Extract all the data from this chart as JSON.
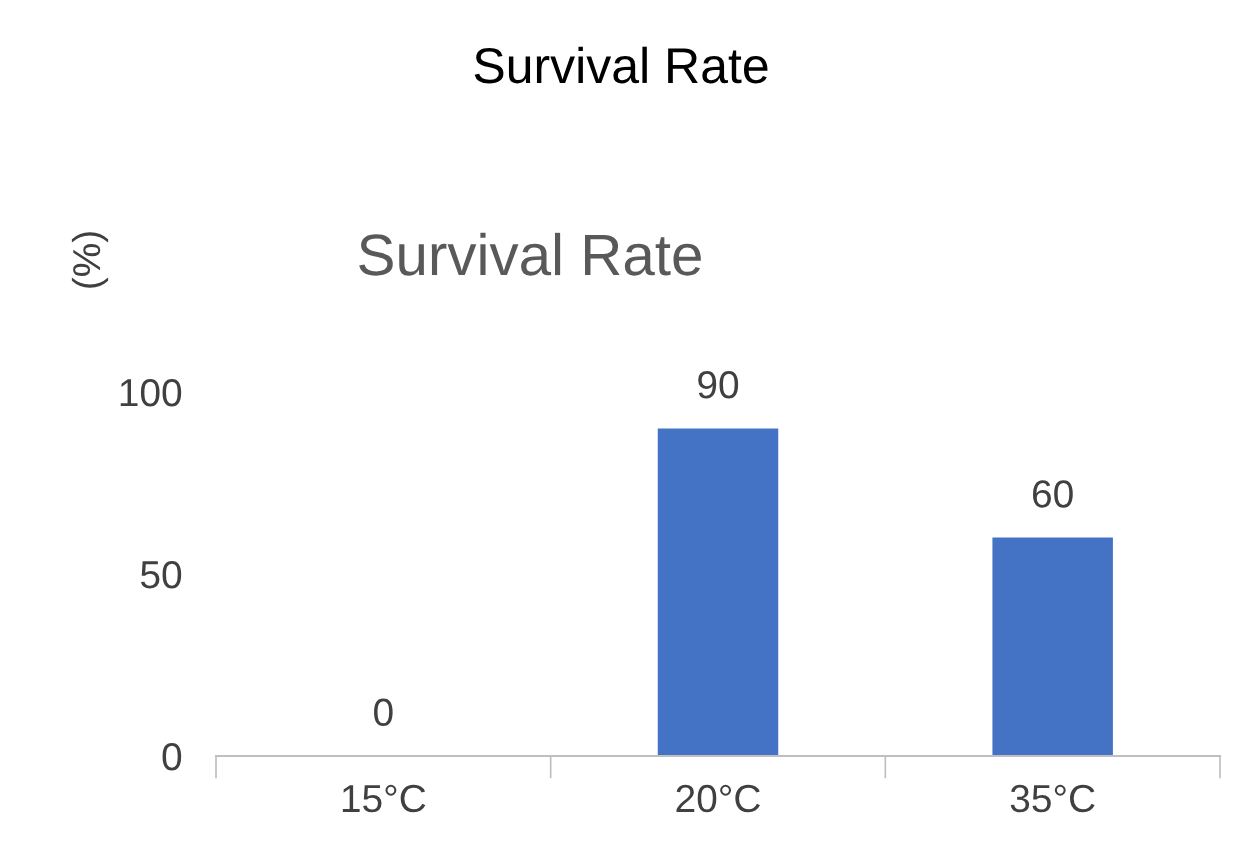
{
  "chart_data": {
    "type": "bar",
    "title": "Survival Rate",
    "subtitle": "Survival Rate",
    "ylabel": "(%)",
    "categories": [
      "15°C",
      "20°C",
      "35°C"
    ],
    "values": [
      0,
      90,
      60
    ],
    "color": "#4472c4",
    "ylim": [
      0,
      100
    ],
    "yticks": [
      0,
      50,
      100
    ],
    "grid": false,
    "legend": false,
    "data_labels": true
  }
}
